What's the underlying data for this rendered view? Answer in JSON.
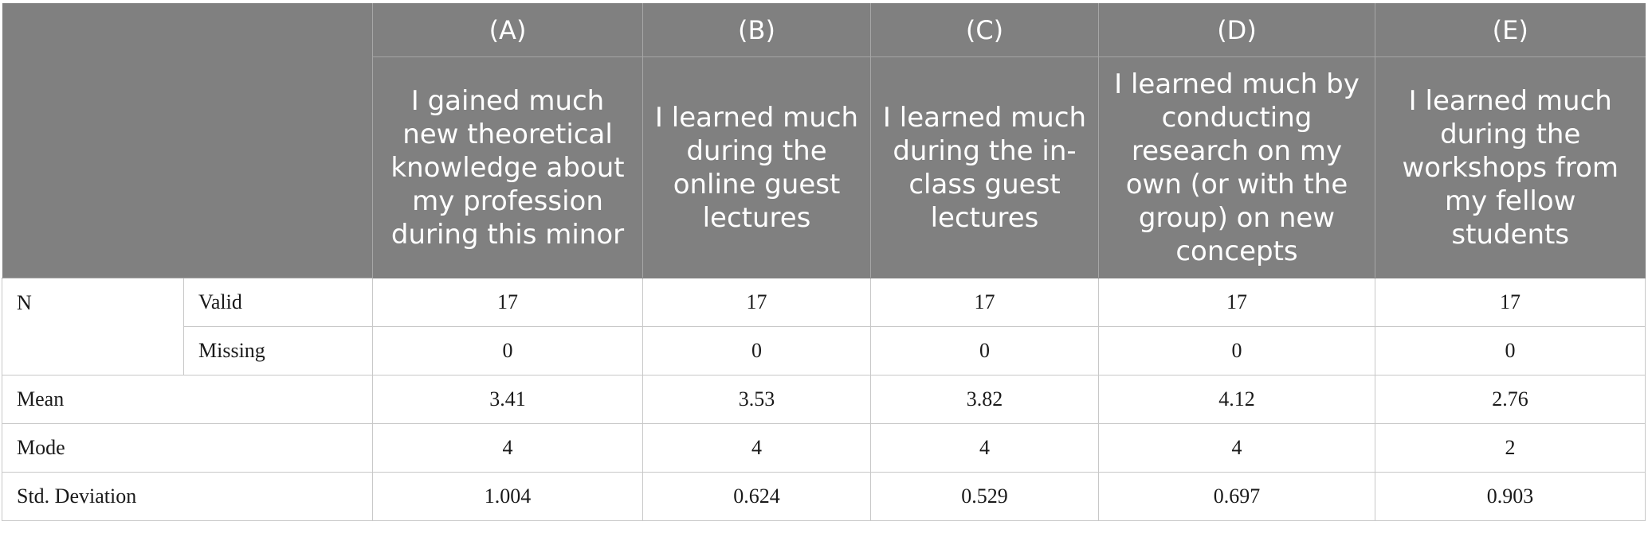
{
  "header": {
    "letters": [
      "(A)",
      "(B)",
      "(C)",
      "(D)",
      "(E)"
    ],
    "questions": [
      "I gained much new theoretical knowledge about my profession during this minor",
      "I learned much during the online guest lectures",
      "I learned much during the in-class guest lectures",
      "I learned much by conducting research on my own (or with the group) on new concepts",
      "I learned much during the workshops from my fellow students"
    ]
  },
  "rows": {
    "n_label": "N",
    "valid": {
      "label": "Valid",
      "values": [
        "17",
        "17",
        "17",
        "17",
        "17"
      ]
    },
    "missing": {
      "label": "Missing",
      "values": [
        "0",
        "0",
        "0",
        "0",
        "0"
      ]
    },
    "mean": {
      "label": "Mean",
      "values": [
        "3.41",
        "3.53",
        "3.82",
        "4.12",
        "2.76"
      ]
    },
    "mode": {
      "label": "Mode",
      "values": [
        "4",
        "4",
        "4",
        "4",
        "2"
      ]
    },
    "std": {
      "label": "Std. Deviation",
      "values": [
        "1.004",
        "0.624",
        "0.529",
        "0.697",
        "0.903"
      ]
    }
  },
  "colors": {
    "header_bg": "#808080",
    "header_text": "#ffffff",
    "grid": "#c8c8c8"
  }
}
